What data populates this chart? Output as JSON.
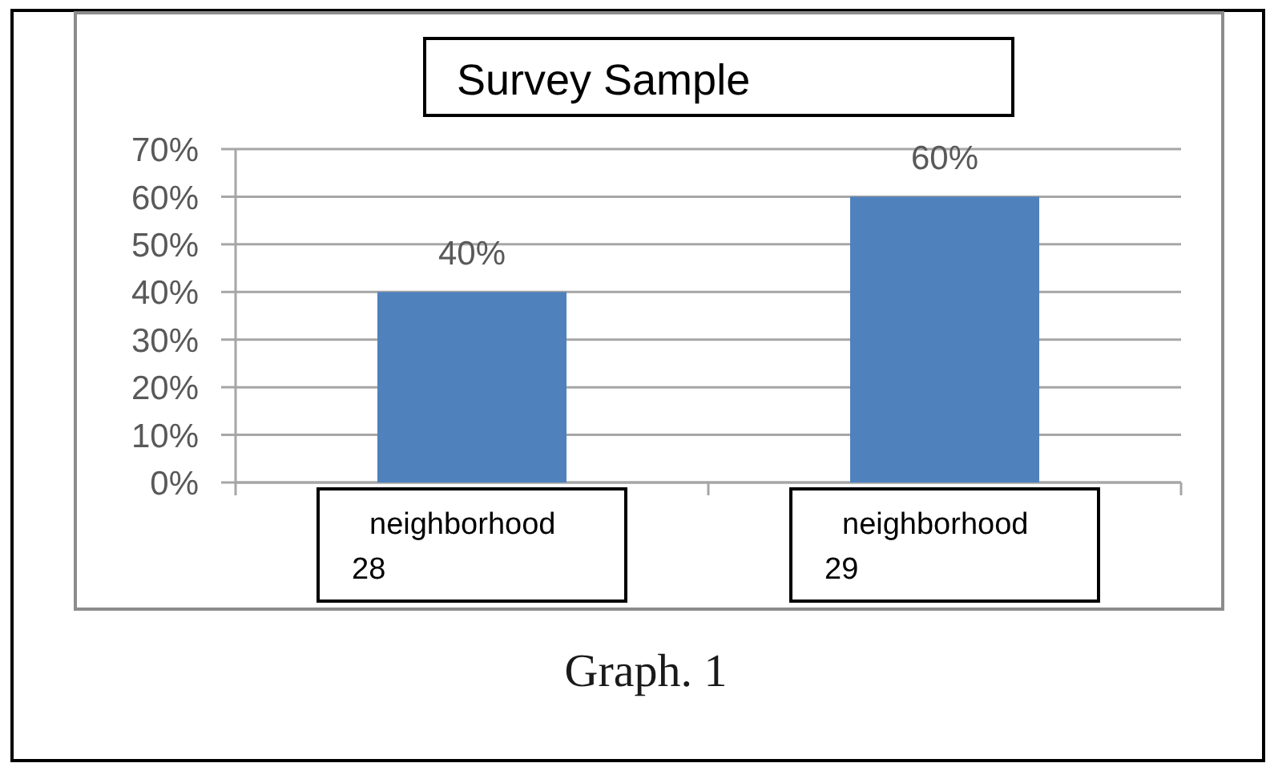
{
  "chart_data": {
    "type": "bar",
    "title": "Survey Sample",
    "categories": [
      "neighborhood 28",
      "neighborhood 29"
    ],
    "values": [
      40,
      60
    ],
    "color": "#4f81bd",
    "ylim": [
      0,
      70
    ],
    "yticks": [
      {
        "value": 0,
        "label": "0%"
      },
      {
        "value": 10,
        "label": "10%"
      },
      {
        "value": 20,
        "label": "20%"
      },
      {
        "value": 30,
        "label": "30%"
      },
      {
        "value": 40,
        "label": "40%"
      },
      {
        "value": 50,
        "label": "50%"
      },
      {
        "value": 60,
        "label": "60%"
      },
      {
        "value": 70,
        "label": "70%"
      }
    ],
    "grid": "y",
    "value_labels": [
      "40%",
      "60%"
    ],
    "annotations": [
      "Graph. 1"
    ]
  }
}
